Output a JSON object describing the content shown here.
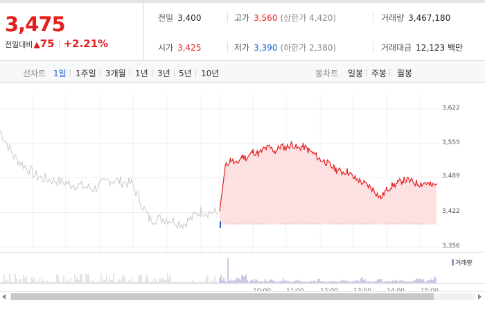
{
  "summary": {
    "price": "3,475",
    "change_label": "전일대비",
    "change_arrow": "▲",
    "change_value": "75",
    "change_pct": "+2.21%",
    "prev_close": {
      "label": "전일",
      "value": "3,400"
    },
    "open": {
      "label": "시가",
      "value": "3,425"
    },
    "high": {
      "label": "고가",
      "value": "3,560",
      "limit": "(상한가 4,420)"
    },
    "low": {
      "label": "저가",
      "value": "3,390",
      "limit": "(하한가 2,380)"
    },
    "volume": {
      "label": "거래량",
      "value": "3,467,180"
    },
    "amount": {
      "label": "거래대금",
      "value": "12,123 백만"
    }
  },
  "tabs": {
    "line_label": "선차트",
    "line_items": [
      "1일",
      "1주일",
      "3개월",
      "1년",
      "3년",
      "5년",
      "10년"
    ],
    "line_active": 0,
    "candle_label": "봉차트",
    "candle_items": [
      "일봉",
      "주봉",
      "월봉"
    ]
  },
  "chart": {
    "y_ticks": [
      "3,622",
      "3,555",
      "3,489",
      "3,422",
      "3,356"
    ],
    "volume_legend": "거래량",
    "x_ticks": [
      "10:00",
      "11:00",
      "12:00",
      "13:00",
      "14:00",
      "15:00"
    ]
  },
  "colors": {
    "up": "#e51e1e",
    "down": "#1d62d7",
    "area_fill": "#fde0e2",
    "prev_day_line": "#c8c8c8",
    "volume": "#9b8fd0"
  },
  "chart_data": {
    "type": "line",
    "ylim": [
      3356,
      3622
    ],
    "base_price": 3400,
    "series": [
      {
        "name": "",
        "x": [
          "09:00",
          "09:10",
          "09:20",
          "09:30",
          "09:40",
          "09:50",
          "10:00",
          "10:10",
          "10:20",
          "10:30",
          "10:40",
          "10:50",
          "11:00",
          "11:10",
          "11:20",
          "11:30",
          "11:40",
          "11:50",
          "12:00",
          "12:10",
          "12:20",
          "12:30",
          "12:40",
          "12:50",
          "13:00",
          "13:10",
          "13:20",
          "13:30",
          "13:40",
          "13:50",
          "14:00",
          "14:10",
          "14:20",
          "14:30",
          "14:40",
          "14:50",
          "15:00",
          "15:10",
          "15:20",
          "15:30"
        ],
        "values": [
          3425,
          3510,
          3525,
          3515,
          3530,
          3528,
          3540,
          3535,
          3545,
          3548,
          3540,
          3550,
          3547,
          3555,
          3545,
          3550,
          3542,
          3535,
          3525,
          3520,
          3512,
          3505,
          3500,
          3502,
          3490,
          3484,
          3478,
          3472,
          3462,
          3450,
          3466,
          3474,
          3478,
          3485,
          3484,
          3480,
          3477,
          3480,
          3474,
          3475
        ]
      }
    ],
    "volume": [
      8,
      3,
      4,
      6,
      9,
      3,
      4,
      2,
      5,
      4,
      2,
      6,
      3,
      2,
      4,
      3,
      2,
      3,
      5,
      2,
      3,
      2,
      4,
      3,
      2,
      3,
      6,
      2,
      3,
      5,
      2,
      3,
      4,
      3,
      2,
      3,
      5,
      4,
      3,
      7
    ]
  }
}
